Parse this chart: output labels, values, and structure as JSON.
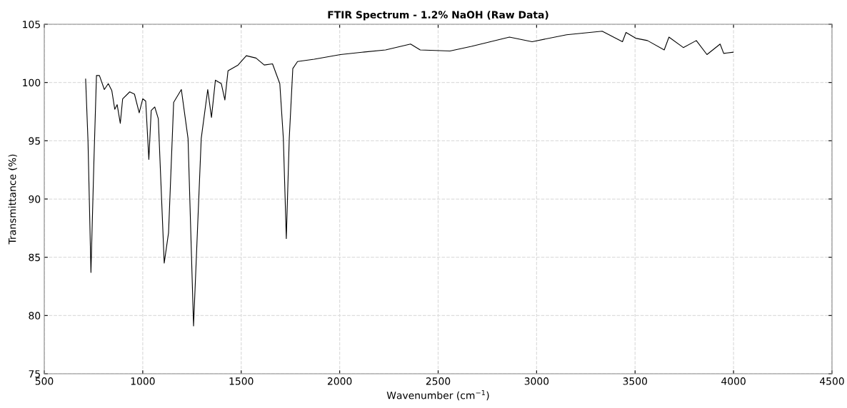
{
  "chart_data": {
    "type": "line",
    "title": "FTIR Spectrum - 1.2% NaOH (Raw Data)",
    "xlabel": "Wavenumber (cm$^{−1}$)",
    "ylabel": "Transmittance (%)",
    "xlim": [
      500,
      4500
    ],
    "xticks": [
      500,
      1000,
      1500,
      2000,
      2500,
      3000,
      3500,
      4000,
      4500
    ],
    "ylim": [
      75,
      105
    ],
    "yticks": [
      75,
      80,
      85,
      90,
      95,
      100,
      105
    ],
    "grid": true,
    "marker": "none",
    "line_style": "solid",
    "series": [
      {
        "color": "#000000",
        "x": [
          710,
          722,
          737,
          752,
          765,
          780,
          805,
          825,
          843,
          858,
          870,
          886,
          898,
          934,
          958,
          982,
          1000,
          1015,
          1031,
          1043,
          1061,
          1079,
          1109,
          1131,
          1157,
          1196,
          1230,
          1258,
          1297,
          1330,
          1349,
          1369,
          1399,
          1417,
          1433,
          1484,
          1526,
          1575,
          1617,
          1659,
          1696,
          1714,
          1729,
          1744,
          1762,
          1786,
          1871,
          2004,
          2113,
          2233,
          2360,
          2409,
          2560,
          2669,
          2862,
          2977,
          3152,
          3333,
          3436,
          3454,
          3503,
          3563,
          3648,
          3672,
          3745,
          3811,
          3865,
          3932,
          3950,
          3998
        ],
        "values": [
          100.3,
          95.0,
          83.7,
          93.2,
          100.6,
          100.6,
          99.4,
          99.9,
          99.3,
          97.7,
          98.1,
          96.5,
          98.6,
          99.2,
          99.0,
          97.4,
          98.6,
          98.4,
          93.4,
          97.6,
          97.9,
          96.9,
          84.5,
          87.1,
          98.3,
          99.4,
          95.2,
          79.1,
          95.2,
          99.4,
          97.0,
          100.2,
          99.9,
          98.5,
          101.0,
          101.5,
          102.3,
          102.1,
          101.5,
          101.6,
          99.9,
          95.2,
          86.6,
          95.2,
          101.2,
          101.8,
          102.0,
          102.4,
          102.6,
          102.8,
          103.3,
          102.8,
          102.7,
          103.1,
          103.9,
          103.5,
          104.1,
          104.4,
          103.5,
          104.3,
          103.8,
          103.6,
          102.8,
          103.9,
          103.0,
          103.6,
          102.4,
          103.3,
          102.5,
          102.6
        ]
      }
    ]
  }
}
